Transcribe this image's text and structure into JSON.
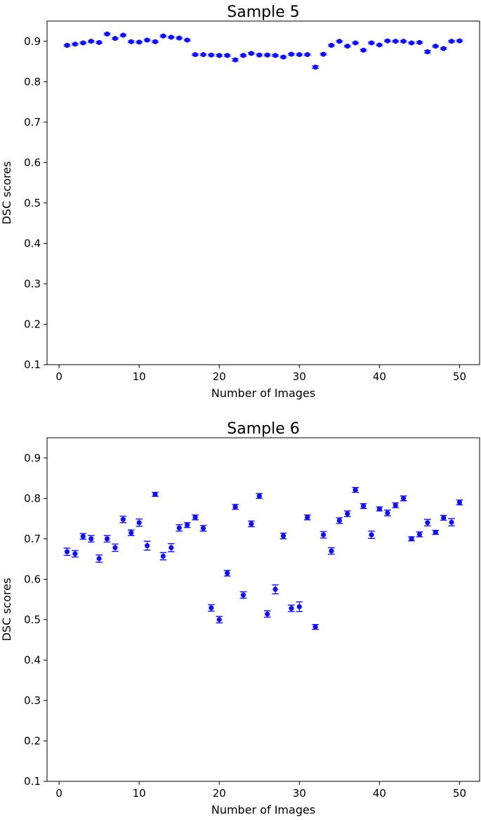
{
  "chart_data": [
    {
      "type": "scatter",
      "title": "Sample 5",
      "xlabel": "Number of Images",
      "ylabel": "DSC scores",
      "xlim": [
        -1.5,
        52.5
      ],
      "ylim": [
        0.1,
        0.95
      ],
      "xticks": [
        0,
        10,
        20,
        30,
        40,
        50
      ],
      "yticks": [
        0.1,
        0.2,
        0.3,
        0.4,
        0.5,
        0.6,
        0.7,
        0.8,
        0.9
      ],
      "grid": false,
      "marker_color": "#1010ee",
      "errorbar_color": "#2020dd",
      "x": [
        1,
        2,
        3,
        4,
        5,
        6,
        7,
        8,
        9,
        10,
        11,
        12,
        13,
        14,
        15,
        16,
        17,
        18,
        19,
        20,
        21,
        22,
        23,
        24,
        25,
        26,
        27,
        28,
        29,
        30,
        31,
        32,
        33,
        34,
        35,
        36,
        37,
        38,
        39,
        40,
        41,
        42,
        43,
        44,
        45,
        46,
        47,
        48,
        49,
        50
      ],
      "y": [
        0.89,
        0.893,
        0.896,
        0.9,
        0.897,
        0.918,
        0.907,
        0.915,
        0.899,
        0.898,
        0.903,
        0.899,
        0.913,
        0.91,
        0.908,
        0.903,
        0.867,
        0.867,
        0.866,
        0.865,
        0.865,
        0.854,
        0.865,
        0.87,
        0.866,
        0.866,
        0.865,
        0.861,
        0.868,
        0.867,
        0.867,
        0.836,
        0.868,
        0.89,
        0.9,
        0.888,
        0.896,
        0.878,
        0.896,
        0.891,
        0.901,
        0.9,
        0.9,
        0.896,
        0.897,
        0.874,
        0.888,
        0.882,
        0.9,
        0.901
      ],
      "yerr": [
        0.002,
        0.002,
        0.002,
        0.002,
        0.002,
        0.002,
        0.002,
        0.002,
        0.002,
        0.002,
        0.002,
        0.002,
        0.002,
        0.002,
        0.002,
        0.002,
        0.002,
        0.002,
        0.002,
        0.002,
        0.002,
        0.003,
        0.002,
        0.002,
        0.002,
        0.002,
        0.002,
        0.002,
        0.002,
        0.002,
        0.002,
        0.003,
        0.002,
        0.002,
        0.002,
        0.002,
        0.002,
        0.002,
        0.002,
        0.002,
        0.002,
        0.002,
        0.002,
        0.002,
        0.002,
        0.003,
        0.002,
        0.002,
        0.002,
        0.002
      ]
    },
    {
      "type": "scatter",
      "title": "Sample 6",
      "xlabel": "Number of Images",
      "ylabel": "DSC scores",
      "xlim": [
        -1.5,
        52.5
      ],
      "ylim": [
        0.1,
        0.95
      ],
      "xticks": [
        0,
        10,
        20,
        30,
        40,
        50
      ],
      "yticks": [
        0.1,
        0.2,
        0.3,
        0.4,
        0.5,
        0.6,
        0.7,
        0.8,
        0.9
      ],
      "grid": false,
      "marker_color": "#1010ee",
      "errorbar_color": "#2020dd",
      "x": [
        1,
        2,
        3,
        4,
        5,
        6,
        7,
        8,
        9,
        10,
        11,
        12,
        13,
        14,
        15,
        16,
        17,
        18,
        19,
        20,
        21,
        22,
        23,
        24,
        25,
        26,
        27,
        28,
        29,
        30,
        31,
        32,
        33,
        34,
        35,
        36,
        37,
        38,
        39,
        40,
        41,
        42,
        43,
        44,
        45,
        46,
        47,
        48,
        49,
        50
      ],
      "y": [
        0.668,
        0.663,
        0.706,
        0.7,
        0.651,
        0.7,
        0.678,
        0.748,
        0.715,
        0.74,
        0.683,
        0.81,
        0.657,
        0.678,
        0.727,
        0.734,
        0.753,
        0.726,
        0.529,
        0.5,
        0.615,
        0.779,
        0.561,
        0.737,
        0.806,
        0.514,
        0.575,
        0.707,
        0.528,
        0.532,
        0.753,
        0.482,
        0.71,
        0.67,
        0.745,
        0.762,
        0.821,
        0.781,
        0.71,
        0.774,
        0.764,
        0.783,
        0.8,
        0.7,
        0.711,
        0.74,
        0.716,
        0.752,
        0.741,
        0.79
      ],
      "yerr": [
        0.009,
        0.008,
        0.007,
        0.008,
        0.009,
        0.008,
        0.009,
        0.008,
        0.007,
        0.009,
        0.011,
        0.005,
        0.009,
        0.01,
        0.008,
        0.006,
        0.006,
        0.007,
        0.008,
        0.008,
        0.007,
        0.006,
        0.008,
        0.007,
        0.006,
        0.008,
        0.011,
        0.007,
        0.008,
        0.012,
        0.006,
        0.006,
        0.008,
        0.008,
        0.007,
        0.007,
        0.006,
        0.006,
        0.009,
        0.005,
        0.007,
        0.006,
        0.006,
        0.005,
        0.006,
        0.008,
        0.005,
        0.006,
        0.009,
        0.006
      ]
    }
  ]
}
